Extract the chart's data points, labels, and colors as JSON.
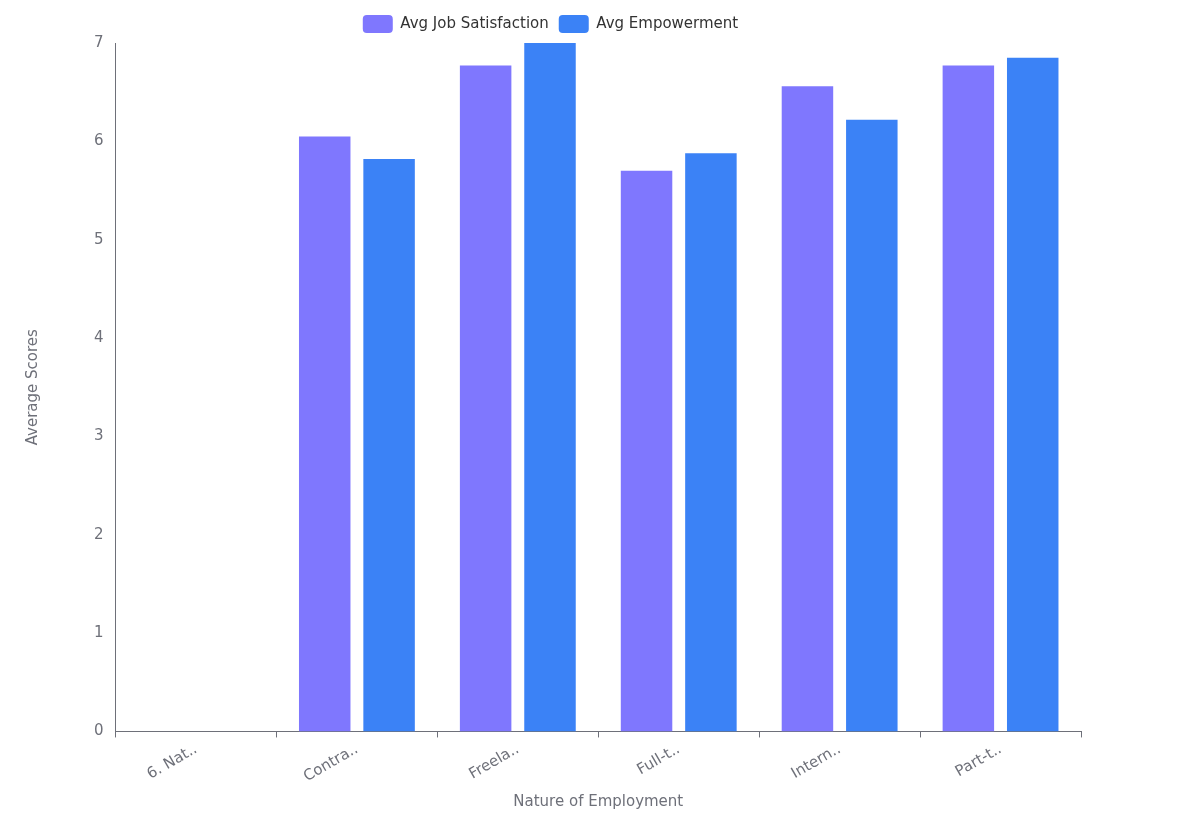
{
  "chart_data": {
    "type": "bar",
    "xlabel": "Nature of Employment",
    "ylabel": "Average Scores",
    "categories": [
      "6. Nat..",
      "Contra..",
      "Freela..",
      "Full-t..",
      "Intern..",
      "Part-t.."
    ],
    "series": [
      {
        "name": "Avg Job Satisfaction",
        "color": "#7f77fe",
        "values": [
          null,
          6.05,
          6.77,
          5.7,
          6.56,
          6.77
        ]
      },
      {
        "name": "Avg Empowerment",
        "color": "#3b82f6",
        "values": [
          null,
          5.82,
          7.0,
          5.88,
          6.22,
          6.85
        ]
      }
    ],
    "ylim": [
      0,
      7
    ],
    "yticks": [
      0,
      1,
      2,
      3,
      4,
      5,
      6,
      7
    ],
    "grid": false,
    "legend": "top"
  }
}
